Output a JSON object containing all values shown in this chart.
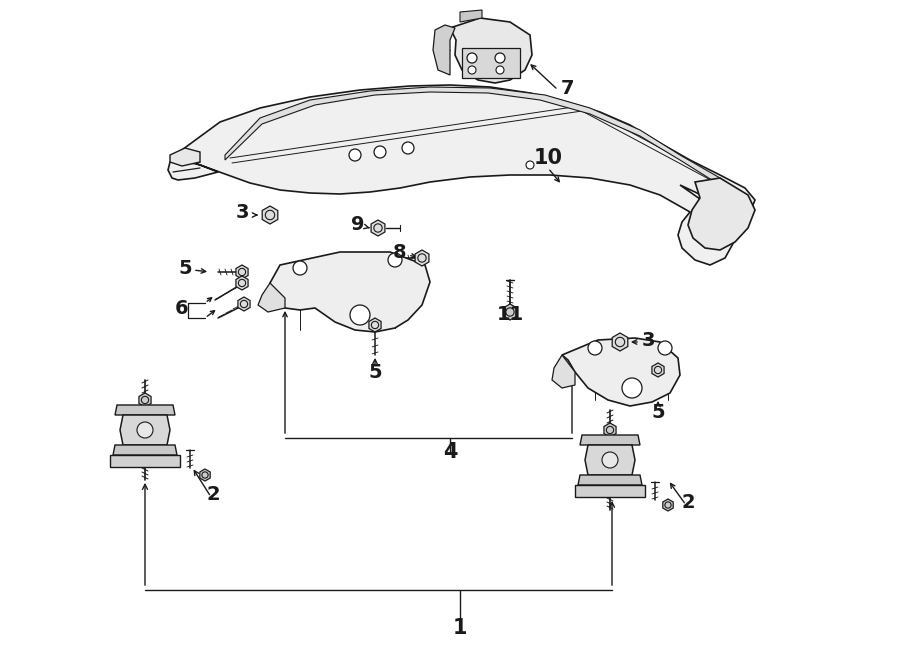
{
  "bg_color": "#ffffff",
  "line_color": "#1a1a1a",
  "figsize": [
    9.0,
    6.61
  ],
  "dpi": 100,
  "xlim": [
    0,
    900
  ],
  "ylim": [
    0,
    661
  ],
  "callout_fontsize": 14,
  "callout_fontsize_lg": 16
}
